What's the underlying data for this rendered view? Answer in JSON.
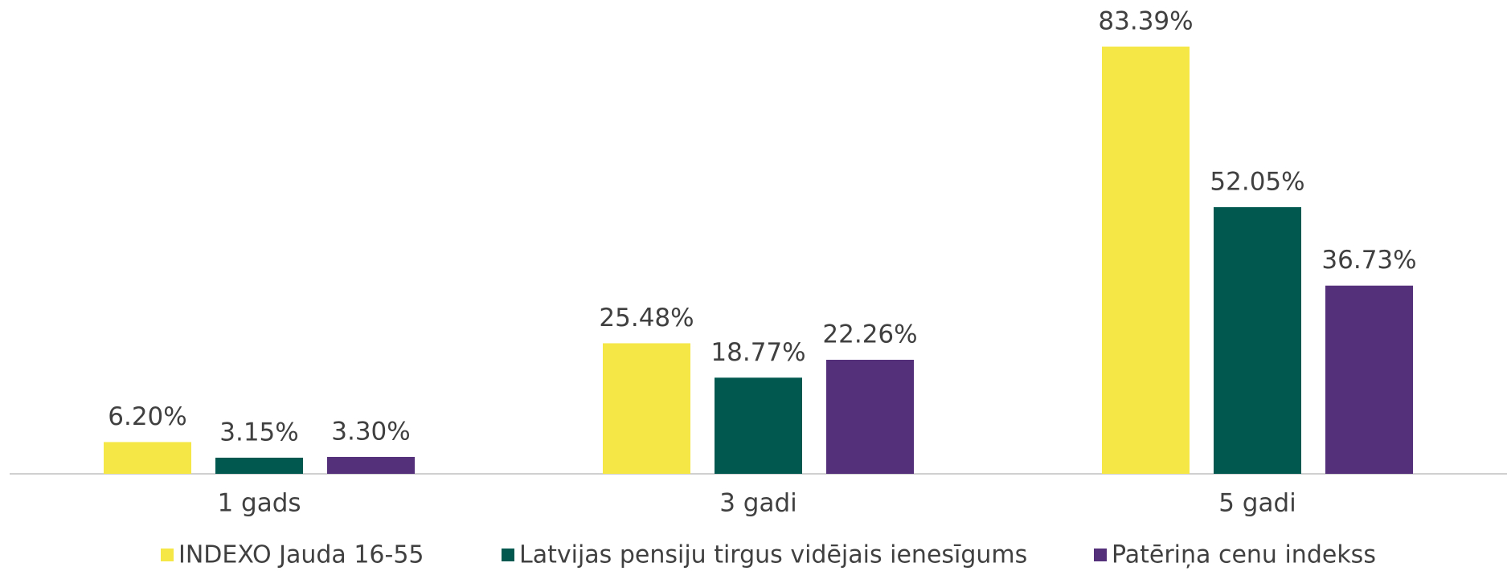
{
  "chart_data": {
    "type": "bar",
    "categories": [
      "1 gads",
      "3 gadi",
      "5 gadi"
    ],
    "series": [
      {
        "name": "INDEXO Jauda 16-55",
        "color": "#f5e846",
        "values": [
          6.2,
          25.48,
          83.39
        ],
        "value_labels": [
          "6.20%",
          "25.48%",
          "83.39%"
        ]
      },
      {
        "name": "Latvijas pensiju tirgus vidējais ienesīgums",
        "color": "#00584f",
        "values": [
          3.15,
          18.77,
          52.05
        ],
        "value_labels": [
          "3.15%",
          "18.77%",
          "52.05%"
        ]
      },
      {
        "name": "Patēriņa cenu indekss",
        "color": "#55307a",
        "values": [
          3.3,
          22.26,
          36.73
        ],
        "value_labels": [
          "3.30%",
          "22.26%",
          "36.73%"
        ]
      }
    ],
    "legend": "bottom"
  }
}
